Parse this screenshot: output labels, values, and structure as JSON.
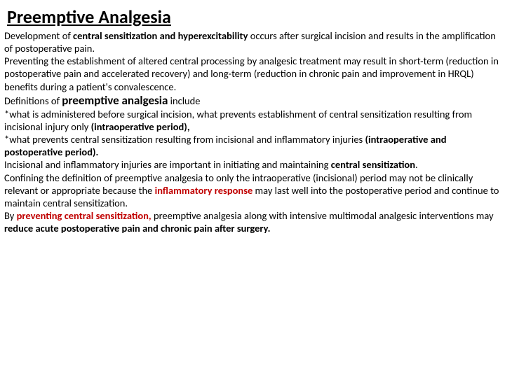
{
  "title": "Preemptive Analgesia",
  "p1a": "Development of ",
  "p1b": "central sensitization and hyperexcitability",
  "p1c": " occurs after surgical incision and results in the amplification of postoperative pain.",
  "p2a": " Preventing the establishment of altered central processing by analgesic treatment may result in short-term (reduction in postoperative pain and accelerated recovery) and long-term (reduction in chronic pain and improvement in HRQL) benefits during a patient's convalescence.",
  "p3a": "Definitions of ",
  "p3b": "preemptive analgesia",
  "p3c": " include",
  "p4a": " *what is administered before surgical incision, what prevents establishment of central sensitization resulting from incisional injury only ",
  "p4b": "(intraoperative period),",
  "p5a": " *what prevents central sensitization resulting from incisional and inflammatory injuries ",
  "p5b": "(intraoperative and postoperative period).",
  "p6a": " Incisional and inflammatory injuries are important in initiating and maintaining ",
  "p6b": "central sensitization",
  "p6c": ".",
  "p7a": "Confining the definition of preemptive analgesia to only the intraoperative (incisional) period may not be clinically relevant or appropriate because the ",
  "p7b": "inflammatory response",
  "p7c": " may last well into the postoperative period and continue to maintain central sensitization.",
  "p8a": "By ",
  "p8b": "preventing central sensitization,",
  "p8c": " preemptive analgesia along with intensive multimodal analgesic interventions may ",
  "p8d": "reduce acute postoperative pain and chronic pain after surgery.",
  "colors": {
    "red": "#c00000",
    "text": "#000000",
    "background": "#ffffff"
  },
  "typography": {
    "title_fontsize": 26,
    "body_fontsize": 14.5,
    "emphasis_fontsize": 17,
    "font_family": "Calibri"
  }
}
